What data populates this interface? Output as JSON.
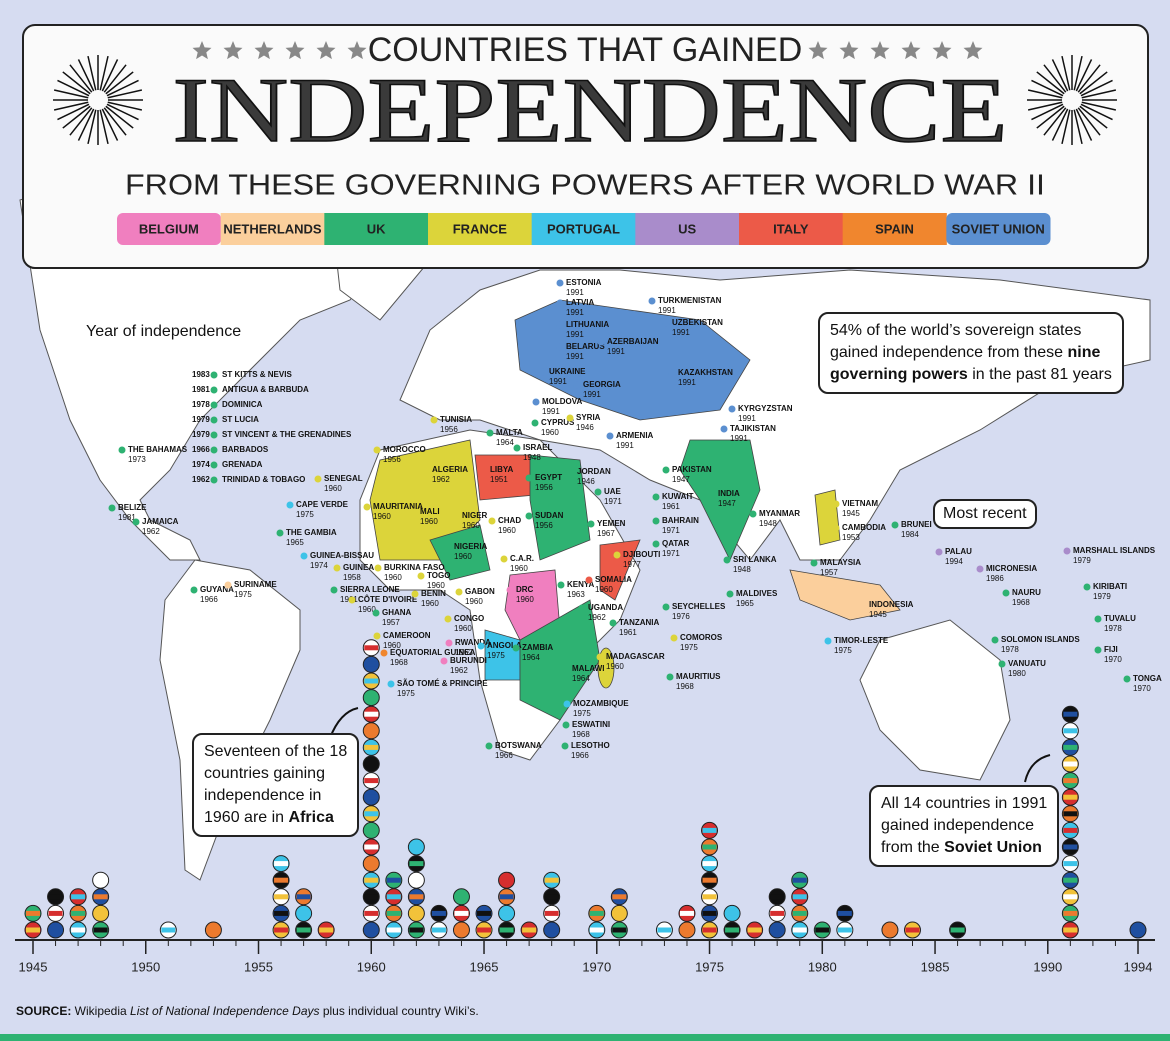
{
  "header": {
    "title_top": "COUNTRIES THAT GAINED",
    "title_main": "INDEPENDENCE",
    "subtitle": "FROM THESE GOVERNING POWERS AFTER WORLD WAR II"
  },
  "legend": [
    {
      "name": "BELGIUM",
      "color": "#f07fbf"
    },
    {
      "name": "NETHERLANDS",
      "color": "#fbcf9c"
    },
    {
      "name": "UK",
      "color": "#2eb272"
    },
    {
      "name": "FRANCE",
      "color": "#dcd43a"
    },
    {
      "name": "PORTUGAL",
      "color": "#3dc3e8"
    },
    {
      "name": "US",
      "color": "#a98ccb"
    },
    {
      "name": "ITALY",
      "color": "#ec5a48"
    },
    {
      "name": "SPAIN",
      "color": "#f0862e"
    },
    {
      "name": "SOVIET UNION",
      "color": "#5b8fd0"
    }
  ],
  "places": [
    {
      "name": "ST KITTS & NEVIS",
      "year": 1983,
      "power": 2
    },
    {
      "name": "ANTIGUA & BARBUDA",
      "year": 1981,
      "power": 2
    },
    {
      "name": "DOMINICA",
      "year": 1978,
      "power": 2
    },
    {
      "name": "ST LUCIA",
      "year": 1979,
      "power": 2
    },
    {
      "name": "ST VINCENT & THE GRENADINES",
      "year": 1979,
      "power": 2
    },
    {
      "name": "BARBADOS",
      "year": 1966,
      "power": 2
    },
    {
      "name": "GRENADA",
      "year": 1974,
      "power": 2
    },
    {
      "name": "TRINIDAD & TOBAGO",
      "year": 1962,
      "power": 2
    },
    {
      "name": "THE BAHAMAS",
      "year": 1973,
      "power": 2
    },
    {
      "name": "BELIZE",
      "year": 1981,
      "power": 2
    },
    {
      "name": "JAMAICA",
      "year": 1962,
      "power": 2
    },
    {
      "name": "GUYANA",
      "year": 1966,
      "power": 2
    },
    {
      "name": "SURINAME",
      "year": 1975,
      "power": 1
    },
    {
      "name": "CAPE VERDE",
      "year": 1975,
      "power": 4
    },
    {
      "name": "THE GAMBIA",
      "year": 1965,
      "power": 2
    },
    {
      "name": "SENEGAL",
      "year": 1960,
      "power": 3
    },
    {
      "name": "MAURITANIA",
      "year": 1960,
      "power": 3
    },
    {
      "name": "MALI",
      "year": 1960,
      "power": 3
    },
    {
      "name": "MOROCCO",
      "year": 1956,
      "power": 3
    },
    {
      "name": "ALGERIA",
      "year": 1962,
      "power": 3
    },
    {
      "name": "TUNISIA",
      "year": 1956,
      "power": 3
    },
    {
      "name": "LIBYA",
      "year": 1951,
      "power": 6
    },
    {
      "name": "EGYPT",
      "year": 1956,
      "power": 2
    },
    {
      "name": "SUDAN",
      "year": 1956,
      "power": 2
    },
    {
      "name": "CHAD",
      "year": 1960,
      "power": 3
    },
    {
      "name": "NIGER",
      "year": 1960,
      "power": 3
    },
    {
      "name": "NIGERIA",
      "year": 1960,
      "power": 2
    },
    {
      "name": "GUINEA-BISSAU",
      "year": 1974,
      "power": 4
    },
    {
      "name": "GUINEA",
      "year": 1958,
      "power": 3
    },
    {
      "name": "BURKINA FASO",
      "year": 1960,
      "power": 3
    },
    {
      "name": "SIERRA LEONE",
      "year": 1961,
      "power": 2
    },
    {
      "name": "CÔTE D'IVOIRE",
      "year": 1960,
      "power": 3
    },
    {
      "name": "GHANA",
      "year": 1957,
      "power": 2
    },
    {
      "name": "TOGO",
      "year": 1960,
      "power": 3
    },
    {
      "name": "BENIN",
      "year": 1960,
      "power": 3
    },
    {
      "name": "GABON",
      "year": 1960,
      "power": 3
    },
    {
      "name": "CONGO",
      "year": 1960,
      "power": 3
    },
    {
      "name": "CAMEROON",
      "year": 1960,
      "power": 3
    },
    {
      "name": "EQUATORIAL GUINEA",
      "year": 1968,
      "power": 7
    },
    {
      "name": "SÃO TOMÉ & PRINCIPE",
      "year": 1975,
      "power": 4
    },
    {
      "name": "RWANDA",
      "year": 1962,
      "power": 0
    },
    {
      "name": "BURUNDI",
      "year": 1962,
      "power": 0
    },
    {
      "name": "C.A.R.",
      "year": 1960,
      "power": 3
    },
    {
      "name": "DRC",
      "year": 1960,
      "power": 0
    },
    {
      "name": "ANGOLA",
      "year": 1975,
      "power": 4
    },
    {
      "name": "ZAMBIA",
      "year": 1964,
      "power": 2
    },
    {
      "name": "MALAWI",
      "year": 1964,
      "power": 2
    },
    {
      "name": "MOZAMBIQUE",
      "year": 1975,
      "power": 4
    },
    {
      "name": "BOTSWANA",
      "year": 1966,
      "power": 2
    },
    {
      "name": "ESWATINI",
      "year": 1968,
      "power": 2
    },
    {
      "name": "LESOTHO",
      "year": 1966,
      "power": 2
    },
    {
      "name": "MADAGASCAR",
      "year": 1960,
      "power": 3
    },
    {
      "name": "MAURITIUS",
      "year": 1968,
      "power": 2
    },
    {
      "name": "COMOROS",
      "year": 1975,
      "power": 3
    },
    {
      "name": "SEYCHELLES",
      "year": 1976,
      "power": 2
    },
    {
      "name": "TANZANIA",
      "year": 1961,
      "power": 2
    },
    {
      "name": "UGANDA",
      "year": 1962,
      "power": 2
    },
    {
      "name": "KENYA",
      "year": 1963,
      "power": 2
    },
    {
      "name": "SOMALIA",
      "year": 1960,
      "power": 6
    },
    {
      "name": "DJIBOUTI",
      "year": 1977,
      "power": 3
    },
    {
      "name": "MALTA",
      "year": 1964,
      "power": 2
    },
    {
      "name": "CYPRUS",
      "year": 1960,
      "power": 2
    },
    {
      "name": "SYRIA",
      "year": 1946,
      "power": 3
    },
    {
      "name": "ISRAEL",
      "year": 1948,
      "power": 2
    },
    {
      "name": "JORDAN",
      "year": 1946,
      "power": 2
    },
    {
      "name": "KUWAIT",
      "year": 1961,
      "power": 2
    },
    {
      "name": "BAHRAIN",
      "year": 1971,
      "power": 2
    },
    {
      "name": "QATAR",
      "year": 1971,
      "power": 2
    },
    {
      "name": "UAE",
      "year": 1971,
      "power": 2
    },
    {
      "name": "YEMEN",
      "year": 1967,
      "power": 2
    },
    {
      "name": "ESTONIA",
      "year": 1991,
      "power": 8
    },
    {
      "name": "LATVIA",
      "year": 1991,
      "power": 8
    },
    {
      "name": "LITHUANIA",
      "year": 1991,
      "power": 8
    },
    {
      "name": "BELARUS",
      "year": 1991,
      "power": 8
    },
    {
      "name": "UKRAINE",
      "year": 1991,
      "power": 8
    },
    {
      "name": "MOLDOVA",
      "year": 1991,
      "power": 8
    },
    {
      "name": "GEORGIA",
      "year": 1991,
      "power": 8
    },
    {
      "name": "ARMENIA",
      "year": 1991,
      "power": 8
    },
    {
      "name": "AZERBAIJAN",
      "year": 1991,
      "power": 8
    },
    {
      "name": "TURKMENISTAN",
      "year": 1991,
      "power": 8
    },
    {
      "name": "UZBEKISTAN",
      "year": 1991,
      "power": 8
    },
    {
      "name": "KAZAKHSTAN",
      "year": 1991,
      "power": 8
    },
    {
      "name": "KYRGYZSTAN",
      "year": 1991,
      "power": 8
    },
    {
      "name": "TAJIKISTAN",
      "year": 1991,
      "power": 8
    },
    {
      "name": "PAKISTAN",
      "year": 1947,
      "power": 2
    },
    {
      "name": "INDIA",
      "year": 1947,
      "power": 2
    },
    {
      "name": "SRI LANKA",
      "year": 1948,
      "power": 2
    },
    {
      "name": "MALDIVES",
      "year": 1965,
      "power": 2
    },
    {
      "name": "MYANMAR",
      "year": 1948,
      "power": 2
    },
    {
      "name": "VIETNAM",
      "year": 1945,
      "power": 3
    },
    {
      "name": "CAMBODIA",
      "year": 1953,
      "power": 3
    },
    {
      "name": "MALAYSIA",
      "year": 1957,
      "power": 2
    },
    {
      "name": "BRUNEI",
      "year": 1984,
      "power": 2
    },
    {
      "name": "INDONESIA",
      "year": 1945,
      "power": 1
    },
    {
      "name": "TIMOR-LESTE",
      "year": 1975,
      "power": 4
    },
    {
      "name": "PALAU",
      "year": 1994,
      "power": 5
    },
    {
      "name": "MICRONESIA",
      "year": 1986,
      "power": 5
    },
    {
      "name": "MARSHALL ISLANDS",
      "year": 1979,
      "power": 5
    },
    {
      "name": "NAURU",
      "year": 1968,
      "power": 2
    },
    {
      "name": "KIRIBATI",
      "year": 1979,
      "power": 2
    },
    {
      "name": "TUVALU",
      "year": 1978,
      "power": 2
    },
    {
      "name": "SOLOMON ISLANDS",
      "year": 1978,
      "power": 2
    },
    {
      "name": "FIJI",
      "year": 1970,
      "power": 2
    },
    {
      "name": "VANUATU",
      "year": 1980,
      "power": 2
    },
    {
      "name": "TONGA",
      "year": 1970,
      "power": 2
    }
  ],
  "year_label": "Year of independence",
  "stat_note": [
    [
      {
        "text": "54% of the world’s sovereign states"
      }
    ],
    [
      {
        "text": "gained independence from these "
      },
      {
        "text": "nine",
        "bold": true
      }
    ],
    [
      {
        "text": "governing powers",
        "bold": true
      },
      {
        "text": " in the past 81 years"
      }
    ]
  ],
  "recent_label": "Most recent",
  "africa_note": [
    [
      {
        "text": "Seventeen of the 18"
      }
    ],
    [
      {
        "text": "countries gaining"
      }
    ],
    [
      {
        "text": "independence in"
      }
    ],
    [
      {
        "text": "1960 are in "
      },
      {
        "text": "Africa",
        "bold": true
      }
    ]
  ],
  "soviet_note": [
    [
      {
        "text": "All 14 countries in 1991"
      }
    ],
    [
      {
        "text": "gained independence"
      }
    ],
    [
      {
        "text": "from the "
      },
      {
        "text": "Soviet Union",
        "bold": true
      }
    ]
  ],
  "timeline": {
    "years": [
      1945,
      1946,
      1947,
      1948,
      1951,
      1953,
      1956,
      1957,
      1958,
      1960,
      1961,
      1962,
      1963,
      1964,
      1965,
      1966,
      1967,
      1968,
      1970,
      1971,
      1973,
      1974,
      1975,
      1976,
      1977,
      1978,
      1979,
      1980,
      1981,
      1983,
      1984,
      1986,
      1991,
      1994
    ],
    "counts": [
      2,
      3,
      3,
      4,
      1,
      1,
      5,
      3,
      1,
      18,
      4,
      6,
      2,
      3,
      2,
      4,
      1,
      4,
      2,
      3,
      1,
      2,
      7,
      2,
      1,
      3,
      4,
      1,
      2,
      1,
      1,
      1,
      14,
      1
    ],
    "xlim": [
      1945,
      1994
    ],
    "xticks": [
      1945,
      1950,
      1955,
      1960,
      1965,
      1970,
      1975,
      1980,
      1985,
      1990,
      1994
    ]
  },
  "source": [
    {
      "text": "SOURCE:",
      "bold": true
    },
    {
      "text": " Wikipedia "
    },
    {
      "text": "List of National Independence Days",
      "italic": true
    },
    {
      "text": " plus individual country Wiki’s."
    }
  ]
}
